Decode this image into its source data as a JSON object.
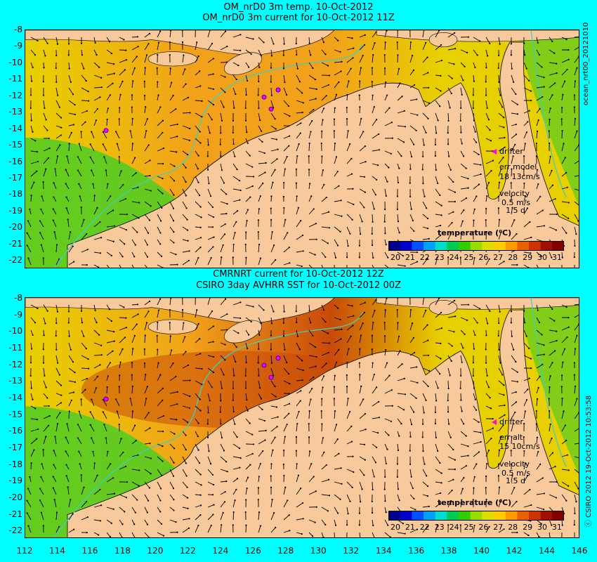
{
  "top": {
    "title1": "OM_nrD0 3m temp. 10-Oct-2012",
    "title2": "OM_nrD0 3m current for 10-Oct-2012 11Z",
    "side_label": "ocean_nrt00_20121010",
    "drifter": "drifter",
    "err_title": "err model",
    "err_value": "18 13cm/s",
    "velocity": "velocity",
    "velocity_value": "0.5 m/s",
    "velocity_days": "1.5 d"
  },
  "bottom": {
    "title1": "CMRNRT current for 10-Oct-2012 12Z",
    "title2": "CSIRO 3day AVHRR SST for 10-Oct-2012 00Z",
    "side_label": "ⓒ CSIRO 2012   19-Oct-2012 10:53:58",
    "drifter": "drifter",
    "err_title": "err alt",
    "err_value": "15 10cm/s",
    "velocity": "velocity",
    "velocity_value": "0.5 m/s",
    "velocity_days": "1.5 d"
  },
  "colorbar": {
    "title": "temperature (⁰C)",
    "ticks": [
      "20",
      "21",
      "22",
      "23",
      "24",
      "25",
      "26",
      "27",
      "28",
      "29",
      "30",
      "31"
    ],
    "colors": [
      "#00008b",
      "#0000cd",
      "#0050ff",
      "#00a0ff",
      "#00ddcc",
      "#00cc55",
      "#33cc00",
      "#99dd00",
      "#dddd00",
      "#ffcc00",
      "#ff9900",
      "#e86000",
      "#cc3300",
      "#a01000",
      "#800000"
    ]
  },
  "lat_labels": [
    "-8",
    "-9",
    "-10",
    "-11",
    "-12",
    "-13",
    "-14",
    "-15",
    "-16",
    "-17",
    "-18",
    "-19",
    "-20",
    "-21",
    "-22"
  ],
  "lon_labels": [
    "112",
    "114",
    "116",
    "118",
    "120",
    "122",
    "124",
    "126",
    "128",
    "130",
    "132",
    "134",
    "136",
    "138",
    "140",
    "142",
    "144",
    "146"
  ],
  "map": {
    "lat_range": [
      -8,
      -22.5
    ],
    "lon_range": [
      112,
      146
    ],
    "land_color": "#f7c99b",
    "sea_warm": "#f2a21a",
    "sea_hot": "#c84a0a",
    "sea_mid": "#e8d000",
    "sea_cool": "#55cc22",
    "isobath_color": "#40d0c0",
    "drifter_color": "#ff00ff"
  }
}
